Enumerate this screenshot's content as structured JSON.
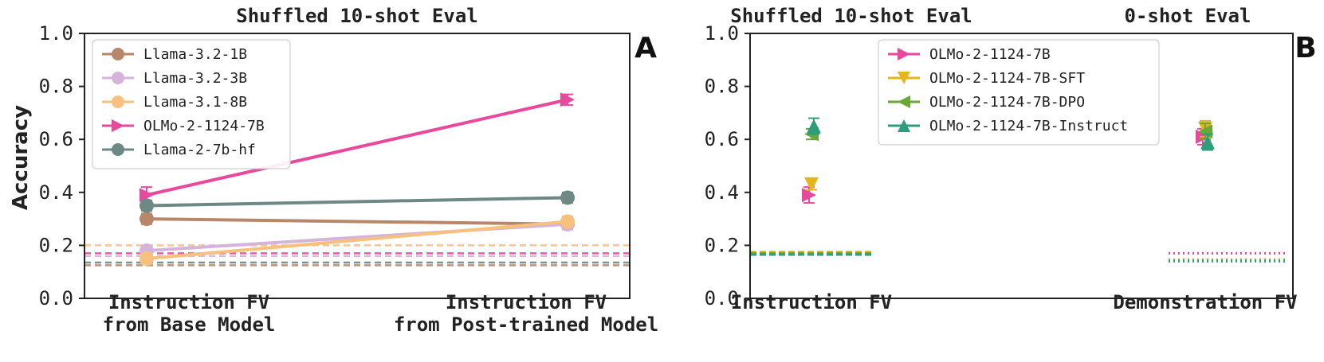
{
  "chart_data": [
    {
      "panel_label": "A",
      "type": "line",
      "title": "Shuffled 10-shot Eval",
      "ylabel": "Accuracy",
      "ylim": [
        0.0,
        1.0
      ],
      "yticks": [
        "0.0",
        "0.2",
        "0.4",
        "0.6",
        "0.8",
        "1.0"
      ],
      "categories": [
        "Instruction FV\nfrom Base Model",
        "Instruction FV\nfrom Post-trained Model"
      ],
      "legend_position": "top-left",
      "series": [
        {
          "name": "Llama-3.2-1B",
          "color": "#b8876a",
          "marker": "circle",
          "values": [
            0.3,
            0.28
          ],
          "errors": [
            0.02,
            0.01
          ],
          "baseline": 0.125
        },
        {
          "name": "Llama-3.2-3B",
          "color": "#d5b4dc",
          "marker": "circle",
          "values": [
            0.18,
            0.28
          ],
          "errors": [
            0.02,
            0.02
          ],
          "baseline": 0.16
        },
        {
          "name": "Llama-3.1-8B",
          "color": "#f7c07d",
          "marker": "circle",
          "values": [
            0.15,
            0.29
          ],
          "errors": [
            0.02,
            0.02
          ],
          "baseline": 0.2
        },
        {
          "name": "OLMo-2-1124-7B",
          "color": "#e8499c",
          "marker": "triangle-right",
          "values": [
            0.39,
            0.75
          ],
          "errors": [
            0.03,
            0.02
          ],
          "baseline": 0.17
        },
        {
          "name": "Llama-2-7b-hf",
          "color": "#6d8885",
          "marker": "circle",
          "values": [
            0.35,
            0.38
          ],
          "errors": [
            0.02,
            0.02
          ],
          "baseline": 0.135
        }
      ]
    },
    {
      "panel_label": "B",
      "type": "scatter",
      "titles": [
        "Shuffled 10-shot Eval",
        "0-shot Eval"
      ],
      "ylim": [
        0.0,
        1.0
      ],
      "yticks": [
        "0.0",
        "0.2",
        "0.4",
        "0.6",
        "0.8",
        "1.0"
      ],
      "categories": [
        "Instruction FV",
        "Demonstration FV"
      ],
      "legend_position": "top-center",
      "series": [
        {
          "name": "OLMo-2-1124-7B",
          "color": "#e8499c",
          "marker": "triangle-right",
          "values": [
            0.39,
            0.61
          ],
          "errors": [
            0.03,
            0.03
          ],
          "baselines": [
            0.17,
            0.17
          ]
        },
        {
          "name": "OLMo-2-1124-7B-SFT",
          "color": "#e6b51d",
          "marker": "triangle-down",
          "values": [
            0.43,
            0.64
          ],
          "errors": [
            0.02,
            0.03
          ],
          "baselines": [
            0.175,
            0.145
          ]
        },
        {
          "name": "OLMo-2-1124-7B-DPO",
          "color": "#6aa835",
          "marker": "triangle-left",
          "values": [
            0.62,
            0.63
          ],
          "errors": [
            0.02,
            0.03
          ],
          "baselines": [
            0.17,
            0.145
          ]
        },
        {
          "name": "OLMo-2-1124-7B-Instruct",
          "color": "#2e9e7a",
          "marker": "triangle-up",
          "values": [
            0.65,
            0.59
          ],
          "errors": [
            0.03,
            0.03
          ],
          "baselines": [
            0.165,
            0.14
          ]
        }
      ]
    }
  ]
}
